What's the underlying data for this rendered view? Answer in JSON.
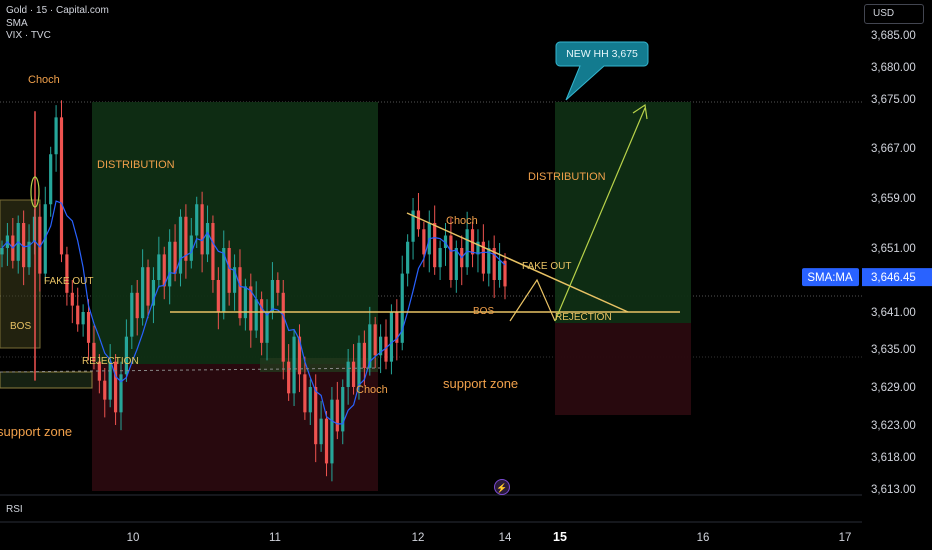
{
  "legend": {
    "line1": "Gold · 15 · Capital.com",
    "line2": "SMA",
    "line3": "VIX · TVC"
  },
  "currency": "USD",
  "rsi_label": "RSI",
  "sma_tag": {
    "label": "SMA:MA",
    "value": "3,646.45"
  },
  "colors": {
    "background": "#000000",
    "grid": "#1e222d",
    "candle_up": "#26a69a",
    "candle_down": "#ef5350",
    "sma_line": "#2962ff",
    "green_zone": "#0f2e14",
    "red_zone": "#2a0a0f",
    "orange": "#f0a04b",
    "yellow_line": "#e8c264",
    "arrow": "#b8d24a",
    "callout": "#137b8f",
    "tag": "#2962ff"
  },
  "chart_data": {
    "type": "candlestick",
    "title": "Gold · 15 · Capital.com",
    "y_ticks": [
      "3,685.00",
      "3,680.00",
      "3,675.00",
      "3,667.00",
      "3,659.00",
      "3,651.00",
      "3,641.00",
      "3,635.00",
      "3,629.00",
      "3,623.00",
      "3,618.00",
      "3,613.00"
    ],
    "x_ticks": [
      "10",
      "11",
      "12",
      "14",
      "15",
      "16",
      "17"
    ],
    "ylim": [
      3613,
      3685
    ],
    "annotations": {
      "choch_1": "Choch",
      "choch_2": "Choch",
      "choch_3": "Choch",
      "distribution_1": "DISTRIBUTION",
      "distribution_2": "DISTRIBUTION",
      "fake_out_1": "FAKE OUT",
      "fake_out_2": "FAKE OUT",
      "bos_1": "BOS",
      "bos_2": "BOS",
      "rejection_1": "REJECTION",
      "rejection_2": "REJECTION",
      "support_zone_1": "support zone",
      "support_zone_2": "support zone",
      "callout": "NEW HH 3,675"
    },
    "levels": {
      "resistance": 3641,
      "target": 3675,
      "sma_last": 3646.45
    },
    "series_close": [
      3651,
      3653,
      3649,
      3655,
      3648,
      3652,
      3656,
      3647,
      3658,
      3666,
      3672,
      3650,
      3644,
      3642,
      3639,
      3641,
      3636,
      3633,
      3630,
      3627,
      3633,
      3625,
      3631,
      3637,
      3644,
      3640,
      3648,
      3642,
      3646,
      3650,
      3645,
      3652,
      3647,
      3656,
      3649,
      3653,
      3658,
      3650,
      3655,
      3646,
      3641,
      3651,
      3644,
      3648,
      3640,
      3645,
      3638,
      3643,
      3636,
      3641,
      3646,
      3644,
      3633,
      3628,
      3637,
      3631,
      3625,
      3629,
      3620,
      3624,
      3617,
      3627,
      3622,
      3629,
      3633,
      3629,
      3636,
      3632,
      3639,
      3634,
      3637,
      3633,
      3641,
      3636,
      3647,
      3652,
      3657,
      3654,
      3650,
      3655,
      3648,
      3651,
      3653,
      3646,
      3651,
      3648,
      3654,
      3650,
      3652,
      3647,
      3651,
      3646,
      3649,
      3645
    ]
  }
}
